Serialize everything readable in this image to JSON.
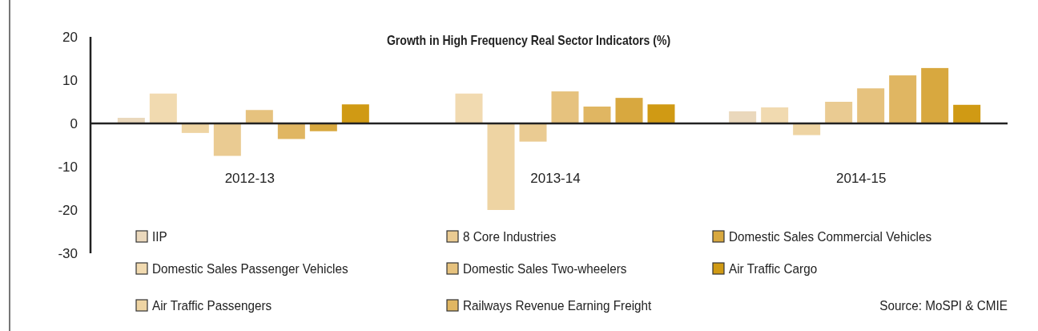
{
  "chart_data": {
    "type": "bar",
    "title": "Growth in High Frequency Real Sector Indicators (%)",
    "categories": [
      "2012-13",
      "2013-14",
      "2014-15"
    ],
    "series": [
      {
        "name": "IIP",
        "color": "#ead8bc",
        "values": [
          1.3,
          0,
          2.8
        ]
      },
      {
        "name": "Domestic Sales Passenger Vehicles",
        "color": "#f1dab0",
        "values": [
          6.9,
          6.9,
          3.7
        ]
      },
      {
        "name": "Air Traffic Passengers",
        "color": "#eed4a3",
        "values": [
          -2.2,
          -20,
          -2.7
        ]
      },
      {
        "name": "8 Core Industries",
        "color": "#eacb92",
        "values": [
          -7.5,
          -4.2,
          5.0
        ]
      },
      {
        "name": "Domestic Sales Two-wheelers",
        "color": "#e6c27e",
        "values": [
          3.1,
          7.4,
          8.1
        ]
      },
      {
        "name": "Railways Revenue Earning Freight",
        "color": "#e0b662",
        "values": [
          -3.6,
          3.9,
          11.1
        ]
      },
      {
        "name": "Domestic Sales Commercial Vehicles",
        "color": "#d8a83f",
        "values": [
          -1.8,
          5.9,
          12.8
        ]
      },
      {
        "name": "Air Traffic Cargo",
        "color": "#d09a14",
        "values": [
          4.4,
          4.4,
          4.3
        ]
      }
    ],
    "ylim": [
      -30,
      20
    ],
    "yticks": [
      -30,
      -20,
      -10,
      0,
      10,
      20
    ],
    "legend": "bottom",
    "annotations": [
      "Source: MoSPI & CMIE"
    ]
  }
}
